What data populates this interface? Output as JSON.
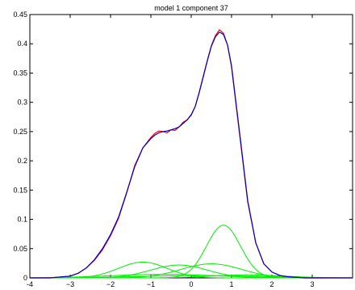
{
  "chart_data": {
    "type": "line",
    "title": "model 1 component 37",
    "xlabel": "",
    "ylabel": "",
    "xlim": [
      -4,
      4
    ],
    "ylim": [
      0,
      0.45
    ],
    "grid": false,
    "xticks": [
      -4,
      -3,
      -2,
      -1,
      0,
      1,
      2,
      3
    ],
    "xtick_labels": [
      "-4",
      "−3",
      "−2",
      "−1",
      "0",
      "1",
      "2",
      "3"
    ],
    "yticks": [
      0,
      0.05,
      0.1,
      0.15,
      0.2,
      0.25,
      0.3,
      0.35,
      0.4,
      0.45
    ],
    "ytick_labels": [
      "0",
      "0.05",
      "0.1",
      "0.15",
      "0.2",
      "0.25",
      "0.3",
      "0.35",
      "0.4",
      "0.45"
    ],
    "series": [
      {
        "role": "empirical",
        "color": "#ff0000",
        "x": [
          -4,
          -3.5,
          -3,
          -2.8,
          -2.6,
          -2.4,
          -2.2,
          -2,
          -1.8,
          -1.6,
          -1.4,
          -1.2,
          -1.0,
          -0.9,
          -0.8,
          -0.7,
          -0.6,
          -0.5,
          -0.4,
          -0.3,
          -0.2,
          -0.1,
          0,
          0.1,
          0.2,
          0.3,
          0.4,
          0.5,
          0.6,
          0.7,
          0.8,
          0.9,
          1.0,
          1.2,
          1.4,
          1.6,
          1.8,
          2.0,
          2.2,
          2.4,
          2.6,
          2.8,
          3.0,
          3.5,
          4
        ],
        "y": [
          0.0,
          0.0,
          0.003,
          0.008,
          0.017,
          0.03,
          0.048,
          0.072,
          0.102,
          0.145,
          0.192,
          0.222,
          0.24,
          0.247,
          0.251,
          0.25,
          0.248,
          0.253,
          0.252,
          0.258,
          0.266,
          0.27,
          0.278,
          0.293,
          0.318,
          0.345,
          0.372,
          0.397,
          0.414,
          0.424,
          0.418,
          0.398,
          0.36,
          0.245,
          0.13,
          0.06,
          0.024,
          0.01,
          0.004,
          0.002,
          0.001,
          0.0,
          0.0,
          0.0,
          0.0
        ]
      },
      {
        "role": "mixture",
        "color": "#0000cc",
        "x": [
          -4,
          -3.5,
          -3,
          -2.8,
          -2.6,
          -2.4,
          -2.2,
          -2,
          -1.8,
          -1.6,
          -1.4,
          -1.2,
          -1.0,
          -0.9,
          -0.8,
          -0.7,
          -0.6,
          -0.5,
          -0.4,
          -0.3,
          -0.2,
          -0.1,
          0,
          0.1,
          0.2,
          0.3,
          0.4,
          0.5,
          0.6,
          0.7,
          0.8,
          0.9,
          1.0,
          1.2,
          1.4,
          1.6,
          1.8,
          2.0,
          2.2,
          2.4,
          2.6,
          2.8,
          3.0,
          3.5,
          4
        ],
        "y": [
          0.0,
          0.0,
          0.003,
          0.008,
          0.017,
          0.031,
          0.05,
          0.074,
          0.104,
          0.146,
          0.19,
          0.222,
          0.238,
          0.244,
          0.248,
          0.25,
          0.251,
          0.253,
          0.255,
          0.258,
          0.264,
          0.27,
          0.279,
          0.293,
          0.317,
          0.344,
          0.371,
          0.396,
          0.412,
          0.42,
          0.416,
          0.398,
          0.362,
          0.248,
          0.132,
          0.06,
          0.024,
          0.01,
          0.004,
          0.002,
          0.001,
          0.0,
          0.0,
          0.0,
          0.0
        ]
      },
      {
        "role": "component",
        "color": "#00ee00",
        "mu": -1.2,
        "sigma": 0.6,
        "amp": 0.027
      },
      {
        "role": "component",
        "color": "#00ee00",
        "mu": -0.3,
        "sigma": 0.7,
        "amp": 0.022
      },
      {
        "role": "component",
        "color": "#00ee00",
        "mu": 0.5,
        "sigma": 0.75,
        "amp": 0.024
      },
      {
        "role": "component",
        "color": "#00ee00",
        "mu": 0.8,
        "sigma": 0.42,
        "amp": 0.09
      },
      {
        "role": "component",
        "color": "#00ee00",
        "mu": -0.7,
        "sigma": 1.3,
        "amp": 0.006
      },
      {
        "role": "component",
        "color": "#00ee00",
        "mu": 0.2,
        "sigma": 1.5,
        "amp": 0.004
      },
      {
        "role": "component",
        "color": "#00ee00",
        "mu": 1.4,
        "sigma": 0.9,
        "amp": 0.005
      }
    ]
  }
}
